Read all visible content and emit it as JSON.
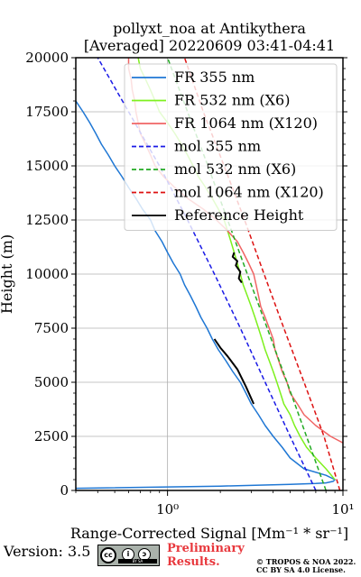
{
  "title_line1": "pollyxt_noa at Antikythera",
  "title_line2": "[Averaged] 20220609 03:41-04:41",
  "version_text": "Version: 3.5",
  "preliminary_line1": "Preliminary",
  "preliminary_line2": "Results.",
  "copyright_line1": "© TROPOS & NOA 2022.",
  "copyright_line2": "CC BY SA 4.0 License.",
  "license_badge": {
    "cc": "cc",
    "by": "i",
    "sa": "ↄ",
    "bar": "BY   SA"
  },
  "colors": {
    "fr355": "#1f77d4",
    "fr532": "#7ef01e",
    "fr1064": "#f06464",
    "mol355": "#1a1ae6",
    "mol532": "#22aa22",
    "mol1064": "#dd1111",
    "ref": "#000000"
  },
  "chart_data": {
    "type": "line",
    "xlabel": "Range-Corrected Signal [Mm⁻¹ * sr⁻¹]",
    "ylabel": "Height (m)",
    "xscale": "log",
    "xlim": [
      0.3,
      10
    ],
    "ylim": [
      0,
      20000
    ],
    "yticks": [
      0,
      2500,
      5000,
      7500,
      10000,
      12500,
      15000,
      17500,
      20000
    ],
    "xticks": [
      {
        "value": 1,
        "label": "10⁰"
      },
      {
        "value": 10,
        "label": "10¹"
      }
    ],
    "grid": true,
    "legend_position": "top-right",
    "series": [
      {
        "name": "FR 355 nm",
        "style": "solid",
        "color_key": "fr355",
        "points": [
          [
            0.3,
            100
          ],
          [
            2,
            200
          ],
          [
            5,
            280
          ],
          [
            7,
            320
          ],
          [
            8,
            350
          ],
          [
            8.8,
            420
          ],
          [
            9,
            500
          ],
          [
            8,
            700
          ],
          [
            6,
            1000
          ],
          [
            5,
            1500
          ],
          [
            4.5,
            2000
          ],
          [
            4,
            2500
          ],
          [
            3.6,
            3000
          ],
          [
            3.3,
            3500
          ],
          [
            3,
            4000
          ],
          [
            2.8,
            4500
          ],
          [
            2.6,
            5000
          ],
          [
            2.35,
            5500
          ],
          [
            2.15,
            6000
          ],
          [
            1.95,
            6500
          ],
          [
            1.8,
            7000
          ],
          [
            1.68,
            7500
          ],
          [
            1.55,
            8000
          ],
          [
            1.45,
            8500
          ],
          [
            1.35,
            9000
          ],
          [
            1.25,
            9500
          ],
          [
            1.18,
            10000
          ],
          [
            1.08,
            10500
          ],
          [
            1,
            11000
          ],
          [
            0.93,
            11500
          ],
          [
            0.85,
            12000
          ],
          [
            0.8,
            12500
          ],
          [
            0.72,
            13000
          ],
          [
            0.66,
            13500
          ],
          [
            0.6,
            14000
          ],
          [
            0.55,
            14500
          ],
          [
            0.5,
            15000
          ],
          [
            0.46,
            15500
          ],
          [
            0.42,
            16000
          ],
          [
            0.39,
            16500
          ],
          [
            0.36,
            17000
          ],
          [
            0.33,
            17500
          ],
          [
            0.3,
            18000
          ]
        ]
      },
      {
        "name": "FR 532 nm (X6)",
        "style": "solid",
        "color_key": "fr532",
        "points": [
          [
            9,
            500
          ],
          [
            8,
            1000
          ],
          [
            7,
            1500
          ],
          [
            6.2,
            2000
          ],
          [
            5.7,
            2500
          ],
          [
            5.3,
            3000
          ],
          [
            5,
            3500
          ],
          [
            4.6,
            4000
          ],
          [
            4.4,
            4500
          ],
          [
            4.2,
            5000
          ],
          [
            4,
            5500
          ],
          [
            3.8,
            6000
          ],
          [
            3.6,
            6500
          ],
          [
            3.45,
            7000
          ],
          [
            3.3,
            7500
          ],
          [
            3.15,
            8000
          ],
          [
            3,
            8500
          ],
          [
            2.85,
            9000
          ],
          [
            2.7,
            9500
          ],
          [
            2.6,
            10000
          ],
          [
            2.5,
            10500
          ],
          [
            2.4,
            11000
          ],
          [
            2.3,
            11500
          ],
          [
            2.2,
            12000
          ],
          [
            2.1,
            12500
          ],
          [
            1.95,
            13000
          ],
          [
            1.8,
            13500
          ],
          [
            1.65,
            14000
          ],
          [
            1.5,
            14500
          ],
          [
            1.4,
            15000
          ],
          [
            1.3,
            15500
          ],
          [
            1.2,
            16000
          ],
          [
            1.1,
            16500
          ],
          [
            1,
            17000
          ],
          [
            0.9,
            17500
          ],
          [
            0.85,
            18000
          ],
          [
            0.8,
            18500
          ],
          [
            0.75,
            19000
          ],
          [
            0.7,
            19500
          ],
          [
            0.68,
            20000
          ]
        ]
      },
      {
        "name": "FR 1064 nm (X120)",
        "style": "solid",
        "color_key": "fr1064",
        "points": [
          [
            10,
            2200
          ],
          [
            8.5,
            2500
          ],
          [
            7,
            3000
          ],
          [
            6,
            3500
          ],
          [
            5.5,
            4000
          ],
          [
            5,
            4500
          ],
          [
            4.8,
            5000
          ],
          [
            4.5,
            5500
          ],
          [
            4.3,
            6000
          ],
          [
            4.1,
            6500
          ],
          [
            4,
            7000
          ],
          [
            3.8,
            7500
          ],
          [
            3.6,
            8000
          ],
          [
            3.4,
            8500
          ],
          [
            3.3,
            9000
          ],
          [
            3.2,
            9500
          ],
          [
            3.1,
            10000
          ],
          [
            2.9,
            10500
          ],
          [
            2.7,
            11000
          ],
          [
            2.5,
            11500
          ],
          [
            2.2,
            12000
          ],
          [
            1.9,
            12500
          ],
          [
            1.6,
            13000
          ],
          [
            1.3,
            13500
          ],
          [
            1.1,
            14000
          ],
          [
            0.95,
            14500
          ],
          [
            0.85,
            15000
          ],
          [
            0.8,
            15500
          ],
          [
            0.75,
            16000
          ],
          [
            0.7,
            16500
          ],
          [
            0.68,
            17000
          ],
          [
            0.66,
            17500
          ],
          [
            0.65,
            18000
          ],
          [
            0.63,
            18500
          ],
          [
            0.62,
            19000
          ],
          [
            0.6,
            19500
          ],
          [
            0.6,
            20000
          ]
        ]
      },
      {
        "name": "mol 355 nm",
        "style": "dashed",
        "color_key": "mol355",
        "points": [
          [
            7,
            0
          ],
          [
            5,
            2500
          ],
          [
            3.6,
            5000
          ],
          [
            2.6,
            7500
          ],
          [
            1.85,
            10000
          ],
          [
            1.3,
            12500
          ],
          [
            0.9,
            15000
          ],
          [
            0.6,
            17500
          ],
          [
            0.4,
            20000
          ]
        ]
      },
      {
        "name": "mol 532 nm (X6)",
        "style": "dashed",
        "color_key": "mol532",
        "points": [
          [
            8,
            0
          ],
          [
            6.2,
            2500
          ],
          [
            4.8,
            5000
          ],
          [
            3.7,
            7500
          ],
          [
            2.85,
            10000
          ],
          [
            2.2,
            12500
          ],
          [
            1.7,
            15000
          ],
          [
            1.3,
            17500
          ],
          [
            1,
            20000
          ]
        ]
      },
      {
        "name": "mol 1064 nm (X120)",
        "style": "dashed",
        "color_key": "mol1064",
        "points": [
          [
            9.6,
            0
          ],
          [
            7.8,
            2500
          ],
          [
            6,
            5000
          ],
          [
            4.6,
            7500
          ],
          [
            3.55,
            10000
          ],
          [
            2.75,
            12500
          ],
          [
            2.1,
            15000
          ],
          [
            1.6,
            17500
          ],
          [
            1.25,
            20000
          ]
        ]
      },
      {
        "name": "Reference Height",
        "style": "solid",
        "color_key": "ref",
        "segments": [
          {
            "points": [
              [
                1.85,
                7000
              ],
              [
                2,
                6600
              ],
              [
                2.2,
                6200
              ],
              [
                2.5,
                5600
              ],
              [
                2.8,
                4800
              ],
              [
                3.1,
                4000
              ]
            ]
          },
          {
            "points": [
              [
                2.4,
                11000
              ],
              [
                2.35,
                10800
              ],
              [
                2.5,
                10600
              ],
              [
                2.45,
                10400
              ],
              [
                2.6,
                10100
              ],
              [
                2.55,
                9800
              ],
              [
                2.65,
                9600
              ]
            ]
          }
        ]
      }
    ]
  }
}
